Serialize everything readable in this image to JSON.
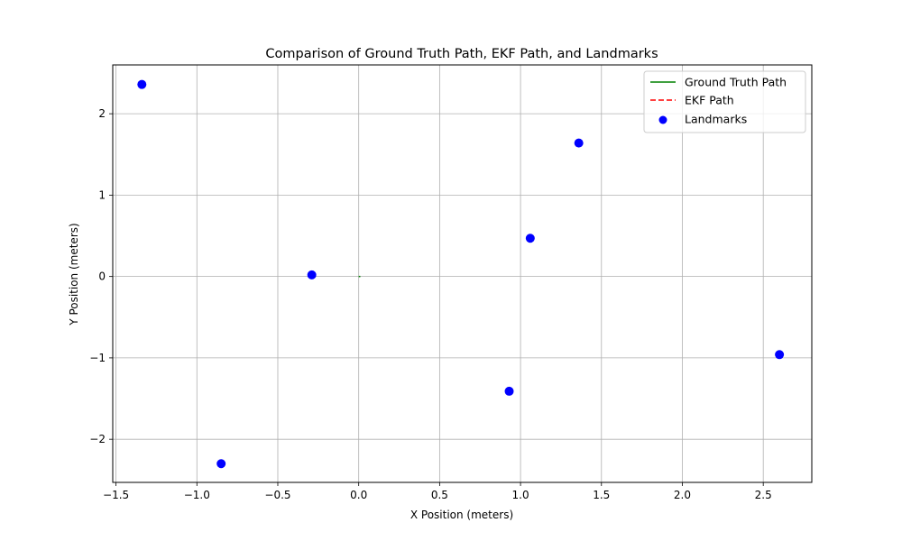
{
  "chart_data": {
    "type": "scatter",
    "title": "Comparison of Ground Truth Path, EKF Path, and Landmarks",
    "xlabel": "X Position (meters)",
    "ylabel": "Y Position (meters)",
    "xlim": [
      -1.52,
      2.8
    ],
    "ylim": [
      -2.53,
      2.6
    ],
    "xticks": [
      -1.5,
      -1.0,
      -0.5,
      0.0,
      0.5,
      1.0,
      1.5,
      2.0,
      2.5
    ],
    "xtick_labels": [
      "−1.5",
      "−1.0",
      "−0.5",
      "0.0",
      "0.5",
      "1.0",
      "1.5",
      "2.0",
      "2.5"
    ],
    "yticks": [
      -2,
      -1,
      0,
      1,
      2
    ],
    "ytick_labels": [
      "−2",
      "−1",
      "0",
      "1",
      "2"
    ],
    "grid": true,
    "legend_position": "top-right",
    "series": [
      {
        "name": "Ground Truth Path",
        "kind": "line",
        "style": "solid",
        "color": "#008000",
        "x": [
          0.0,
          0.01
        ],
        "y": [
          0.0,
          0.0
        ]
      },
      {
        "name": "EKF Path",
        "kind": "line",
        "style": "dashed",
        "color": "#ff0000",
        "x": [],
        "y": []
      },
      {
        "name": "Landmarks",
        "kind": "scatter",
        "color": "#0000ff",
        "x": [
          -1.34,
          -0.85,
          -0.29,
          0.93,
          1.06,
          1.36,
          2.6
        ],
        "y": [
          2.36,
          -2.3,
          0.02,
          -1.41,
          0.47,
          1.64,
          -0.96
        ]
      }
    ]
  }
}
